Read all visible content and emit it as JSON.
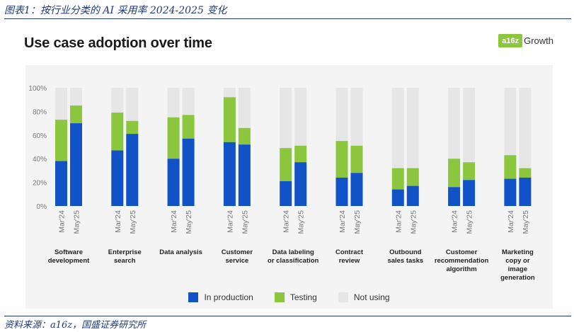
{
  "caption": "图表1：按行业分类的 AI 采用率 2024-2025 变化",
  "source": "资料来源：a16z，国盛证券研究所",
  "logo": {
    "box": "a16z",
    "text": "Growth"
  },
  "colors": {
    "production": "#1252c7",
    "testing": "#8cc63e",
    "not_using": "#e6e6e6",
    "accent": "#1f3a78"
  },
  "chart_data": {
    "type": "bar",
    "stacked": true,
    "title": "Use case adoption over time",
    "xlabel": "",
    "ylabel": "",
    "ylim": [
      0,
      100
    ],
    "yticks": [
      "0%",
      "20%",
      "40%",
      "60%",
      "80%",
      "100%"
    ],
    "periods": [
      "Mar'24",
      "May'25"
    ],
    "categories": [
      {
        "name": "Software development",
        "lines": [
          "Software",
          "development"
        ],
        "production": [
          38,
          70
        ],
        "testing": [
          35,
          15
        ]
      },
      {
        "name": "Enterprise search",
        "lines": [
          "Enterprise",
          "search"
        ],
        "production": [
          47,
          61
        ],
        "testing": [
          32,
          11
        ]
      },
      {
        "name": "Data analysis",
        "lines": [
          "Data analysis"
        ],
        "production": [
          40,
          57
        ],
        "testing": [
          35,
          20
        ]
      },
      {
        "name": "Customer service",
        "lines": [
          "Customer",
          "service"
        ],
        "production": [
          54,
          52
        ],
        "testing": [
          38,
          14
        ]
      },
      {
        "name": "Data labeling or classification",
        "lines": [
          "Data labeling",
          "or classification"
        ],
        "production": [
          21,
          37
        ],
        "testing": [
          28,
          14
        ]
      },
      {
        "name": "Contract review",
        "lines": [
          "Contract",
          "review"
        ],
        "production": [
          24,
          28
        ],
        "testing": [
          31,
          23
        ]
      },
      {
        "name": "Outbound sales tasks",
        "lines": [
          "Outbound",
          "sales tasks"
        ],
        "production": [
          14,
          17
        ],
        "testing": [
          18,
          15
        ]
      },
      {
        "name": "Customer recommendation algorithm",
        "lines": [
          "Customer",
          "recommendation",
          "algorithm"
        ],
        "production": [
          16,
          22
        ],
        "testing": [
          24,
          15
        ]
      },
      {
        "name": "Marketing copy or image generation",
        "lines": [
          "Marketing",
          "copy or",
          "image",
          "generation"
        ],
        "production": [
          23,
          24
        ],
        "testing": [
          20,
          8
        ]
      }
    ],
    "legend": [
      "In production",
      "Testing",
      "Not using"
    ],
    "legend_position": "bottom"
  }
}
